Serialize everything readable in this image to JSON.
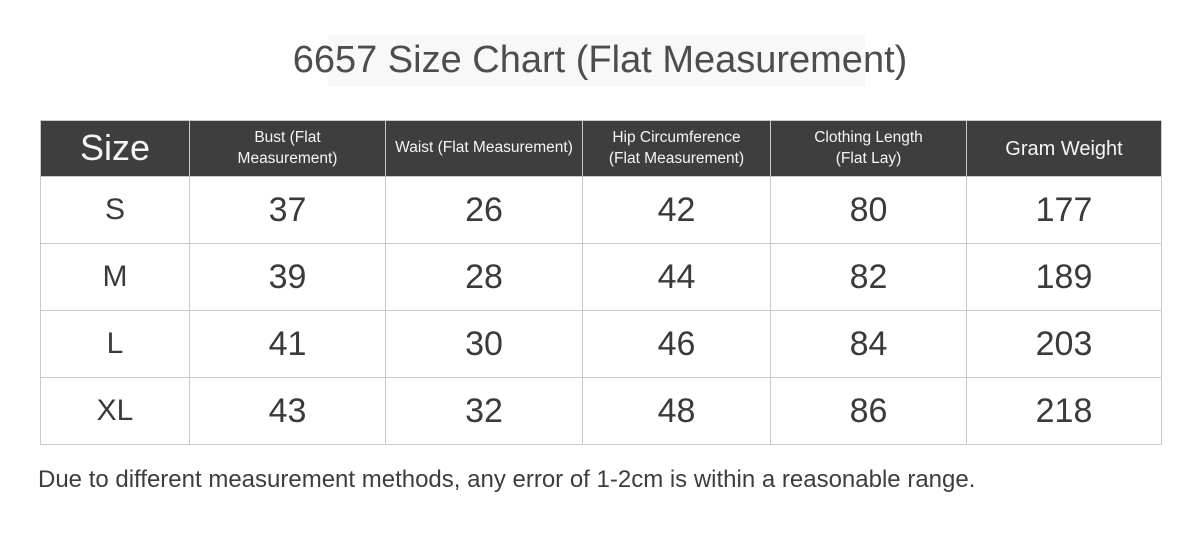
{
  "title": "6657 Size Chart (Flat Measurement)",
  "colors": {
    "header_bg": "#3e3e3e",
    "header_text": "#f5f5f5",
    "border": "#c9c9c9",
    "cell_text": "#3a3a3a"
  },
  "chart_data": {
    "type": "table",
    "title": "6657 Size Chart (Flat Measurement)",
    "columns": [
      "Size",
      "Bust (Flat\nMeasurement)",
      "Waist (Flat Measurement)",
      "Hip Circumference\n(Flat Measurement)",
      "Clothing Length\n(Flat Lay)",
      "Gram Weight"
    ],
    "rows": [
      [
        "S",
        "37",
        "26",
        "42",
        "80",
        "177"
      ],
      [
        "M",
        "39",
        "28",
        "44",
        "82",
        "189"
      ],
      [
        "L",
        "41",
        "30",
        "46",
        "84",
        "203"
      ],
      [
        "XL",
        "43",
        "32",
        "48",
        "86",
        "218"
      ]
    ]
  },
  "footer": {
    "note": "Due to different measurement methods, any error of 1-2cm is within a reasonable range."
  }
}
